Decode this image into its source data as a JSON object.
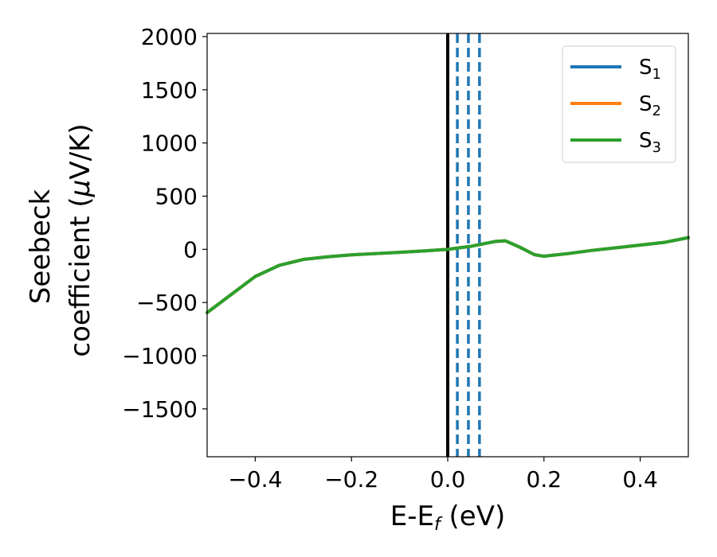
{
  "chart_data": {
    "type": "line",
    "xlabel": {
      "main": "E-E",
      "sub": "f",
      "tail": " (eV)"
    },
    "ylabel": {
      "line1": "Seebeck",
      "line2": "coefficient  (",
      "mu": "μ",
      "line2_tail": "V/K)"
    },
    "xlim": [
      -0.5,
      0.5
    ],
    "ylim": [
      -1950,
      2030
    ],
    "x_ticks": [
      -0.4,
      -0.2,
      0.0,
      0.2,
      0.4
    ],
    "x_tick_labels": [
      "−0.4",
      "−0.2",
      "0.0",
      "0.2",
      "0.4"
    ],
    "y_ticks": [
      2000,
      1500,
      1000,
      500,
      0,
      -500,
      -1000,
      -1500
    ],
    "y_tick_labels": [
      "2000",
      "1500",
      "1000",
      "500",
      "0",
      "−500",
      "−1000",
      "−1500"
    ],
    "grid": false,
    "legend_position": "top-right",
    "reference_lines": {
      "solid_black_at_x": 0.0,
      "dashed_blue_at_x": [
        0.02,
        0.043,
        0.066
      ]
    },
    "series": [
      {
        "name": "S",
        "sub": "1",
        "color": "#1f77b4",
        "x": [
          -0.5,
          -0.45,
          -0.4,
          -0.35,
          -0.3,
          -0.25,
          -0.2,
          -0.15,
          -0.1,
          -0.05,
          0.0,
          0.05,
          0.1,
          0.12,
          0.15,
          0.18,
          0.2,
          0.25,
          0.3,
          0.35,
          0.4,
          0.45,
          0.5
        ],
        "y": [
          -595,
          -425,
          -255,
          -150,
          -95,
          -70,
          -52,
          -40,
          -28,
          -15,
          0,
          30,
          75,
          80,
          20,
          -50,
          -65,
          -40,
          -10,
          15,
          40,
          65,
          110
        ]
      },
      {
        "name": "S",
        "sub": "2",
        "color": "#ff7f0e",
        "x": [
          -0.5,
          -0.45,
          -0.4,
          -0.35,
          -0.3,
          -0.25,
          -0.2,
          -0.15,
          -0.1,
          -0.05,
          0.0,
          0.05,
          0.1,
          0.12,
          0.15,
          0.18,
          0.2,
          0.25,
          0.3,
          0.35,
          0.4,
          0.45,
          0.5
        ],
        "y": [
          -595,
          -425,
          -255,
          -150,
          -95,
          -70,
          -52,
          -40,
          -28,
          -15,
          0,
          30,
          75,
          80,
          20,
          -50,
          -65,
          -40,
          -10,
          15,
          40,
          65,
          110
        ]
      },
      {
        "name": "S",
        "sub": "3",
        "color": "#2ca02c",
        "x": [
          -0.5,
          -0.45,
          -0.4,
          -0.35,
          -0.3,
          -0.25,
          -0.2,
          -0.15,
          -0.1,
          -0.05,
          0.0,
          0.05,
          0.1,
          0.12,
          0.15,
          0.18,
          0.2,
          0.25,
          0.3,
          0.35,
          0.4,
          0.45,
          0.5
        ],
        "y": [
          -595,
          -425,
          -255,
          -150,
          -95,
          -70,
          -52,
          -40,
          -28,
          -15,
          0,
          30,
          75,
          80,
          20,
          -50,
          -65,
          -40,
          -10,
          15,
          40,
          65,
          110
        ]
      }
    ]
  }
}
